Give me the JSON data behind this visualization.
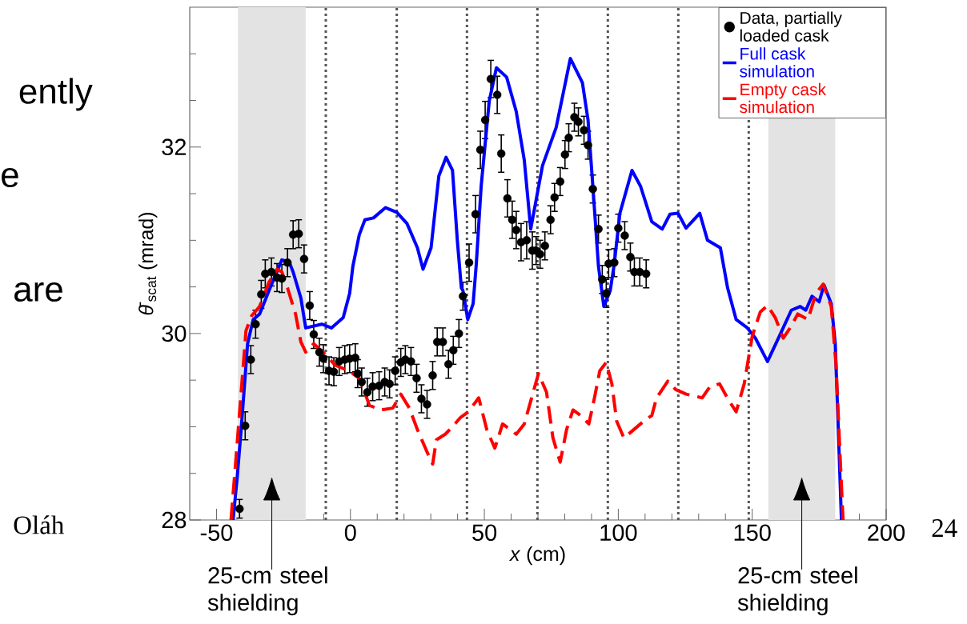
{
  "chart_data": {
    "type": "line",
    "xlabel": "*x* (cm)",
    "ylabel": "*θ̄*$_{scat}$ (mrad)",
    "xlim": [
      -60,
      200
    ],
    "xticks": [
      -50,
      0,
      50,
      100,
      150,
      200,
      {
        "value": -40,
        "label": null
      },
      {
        "value": -30,
        "label": null
      },
      {
        "value": -20,
        "label": null
      },
      {
        "value": -10,
        "label": null
      },
      {
        "value": 10,
        "label": null
      },
      {
        "value": 20,
        "label": null
      },
      {
        "value": 30,
        "label": null
      },
      {
        "value": 40,
        "label": null
      },
      {
        "value": 60,
        "label": null
      },
      {
        "value": 70,
        "label": null
      },
      {
        "value": 80,
        "label": null
      },
      {
        "value": 90,
        "label": null
      },
      {
        "value": 110,
        "label": null
      },
      {
        "value": 120,
        "label": null
      },
      {
        "value": 130,
        "label": null
      },
      {
        "value": 140,
        "label": null
      },
      {
        "value": 160,
        "label": null
      },
      {
        "value": 170,
        "label": null
      },
      {
        "value": 180,
        "label": null
      },
      {
        "value": 190,
        "label": null
      }
    ],
    "ylim": [
      28,
      33.5
    ],
    "yticks": [
      28,
      30,
      32,
      {
        "value": 28.5,
        "label": null
      },
      {
        "value": 29,
        "label": null
      },
      {
        "value": 29.5,
        "label": null
      },
      {
        "value": 30.5,
        "label": null
      },
      {
        "value": 31,
        "label": null
      },
      {
        "value": 31.5,
        "label": null
      },
      {
        "value": 32.5,
        "label": null
      },
      {
        "value": 33,
        "label": null
      }
    ],
    "legend": "top right",
    "series": [
      {
        "name": "Data, partially loaded cask",
        "type": "scatter",
        "color": "#000000",
        "marker": "circle",
        "x": [
          -41.4,
          -39.3,
          -37.2,
          -35.4,
          -33.3,
          -31.8,
          -29.5,
          -27.4,
          -25.6,
          -23.5,
          -21.4,
          -19.3,
          -17.3,
          -15.2,
          -13.7,
          -11.6,
          -10.1,
          -8,
          -6.2,
          -4.2,
          -2.1,
          -0.3,
          1.8,
          2.7,
          4.2,
          6.3,
          8.3,
          10.7,
          12.8,
          14.6,
          16.7,
          18.8,
          20.5,
          22.6,
          24.7,
          26.5,
          28.6,
          30.7,
          32.4,
          34.5,
          36.6,
          38.4,
          40.5,
          42,
          44.3,
          46.7,
          48.5,
          50.3,
          52.4,
          54.8,
          56.3,
          58.6,
          60.4,
          61.9,
          63.7,
          65.8,
          67.9,
          69.3,
          70.8,
          72.6,
          74.7,
          76.2,
          78.3,
          80.1,
          81.5,
          83.6,
          85.1,
          87.2,
          88.7,
          90.5,
          92.6,
          94,
          95.5,
          96.4,
          98.5,
          100,
          102.4,
          104.5,
          106,
          108,
          110.4
        ],
        "values": [
          28.12,
          29.01,
          29.72,
          30.1,
          30.42,
          30.64,
          30.66,
          30.6,
          30.59,
          30.76,
          31.06,
          31.07,
          30.8,
          30.3,
          29.99,
          29.8,
          29.73,
          29.6,
          29.59,
          29.7,
          29.72,
          29.73,
          29.74,
          29.57,
          29.48,
          29.37,
          29.43,
          29.44,
          29.48,
          29.46,
          29.6,
          29.69,
          29.72,
          29.7,
          29.52,
          29.3,
          29.24,
          29.55,
          29.91,
          29.91,
          29.67,
          29.82,
          30.0,
          30.4,
          30.76,
          31.28,
          31.97,
          32.29,
          32.73,
          32.56,
          31.93,
          31.45,
          31.22,
          31.11,
          30.98,
          31.0,
          30.89,
          30.89,
          30.85,
          30.94,
          31.22,
          31.46,
          31.63,
          31.92,
          32.1,
          32.32,
          32.27,
          32.18,
          32.02,
          31.55,
          31.12,
          30.58,
          30.43,
          30.75,
          30.76,
          31.13,
          31.05,
          30.82,
          30.66,
          30.66,
          30.64
        ],
        "errors": [
          0.1,
          0.15,
          0.15,
          0.15,
          0.15,
          0.15,
          0.15,
          0.15,
          0.15,
          0.15,
          0.15,
          0.15,
          0.15,
          0.15,
          0.15,
          0.15,
          0.15,
          0.15,
          0.15,
          0.15,
          0.15,
          0.15,
          0.15,
          0.15,
          0.15,
          0.15,
          0.15,
          0.15,
          0.15,
          0.15,
          0.15,
          0.15,
          0.15,
          0.15,
          0.15,
          0.15,
          0.15,
          0.15,
          0.15,
          0.15,
          0.15,
          0.15,
          0.15,
          0.15,
          0.2,
          0.2,
          0.2,
          0.2,
          0.2,
          0.2,
          0.2,
          0.2,
          0.2,
          0.2,
          0.2,
          0.2,
          0.2,
          0.15,
          0.15,
          0.15,
          0.15,
          0.15,
          0.15,
          0.15,
          0.15,
          0.15,
          0.15,
          0.15,
          0.15,
          0.15,
          0.15,
          0.15,
          0.15,
          0.15,
          0.15,
          0.15,
          0.15,
          0.15,
          0.15,
          0.15,
          0.15
        ]
      },
      {
        "name": "Full cask simulation",
        "color": "#0000ff",
        "line_style": "solid",
        "marker": "none",
        "x": [
          -43.8,
          -42.3,
          -40.8,
          -38.4,
          -36.3,
          -33.9,
          -30.4,
          -25.6,
          -22.9,
          -21.4,
          -18.5,
          -16.7,
          -13.7,
          -10.7,
          -7.1,
          -2.7,
          -0.3,
          0.9,
          3.3,
          5.4,
          8.6,
          13.1,
          17.3,
          21.1,
          25,
          27.1,
          30.1,
          33,
          35.7,
          38.1,
          39.9,
          41.4,
          42,
          43.8,
          45.8,
          47,
          48.8,
          51.8,
          54.5,
          58.3,
          61.9,
          64.9,
          67.3,
          71.7,
          76.8,
          82.1,
          86.6,
          88.7,
          90.5,
          92.6,
          94.6,
          97,
          98.5,
          100.6,
          105.1,
          108.3,
          112.5,
          116.4,
          119.3,
          122.3,
          125.3,
          130.4,
          133.3,
          138.1,
          140.8,
          144,
          148.2,
          151.2,
          155.7,
          160.1,
          164.6,
          167.9,
          170,
          172.3,
          175,
          176.8,
          179.5,
          181,
          182.4,
          183.3
        ],
        "values": [
          28.0,
          28.45,
          28.97,
          29.89,
          30.15,
          30.21,
          30.46,
          30.79,
          30.77,
          30.66,
          30.38,
          30.06,
          30.08,
          30.1,
          30.06,
          30.17,
          30.43,
          30.72,
          31.06,
          31.22,
          31.24,
          31.35,
          31.3,
          31.18,
          30.92,
          30.69,
          30.92,
          31.69,
          31.89,
          31.75,
          31.0,
          30.49,
          30.46,
          30.15,
          30.32,
          30.75,
          31.58,
          32.49,
          32.85,
          32.75,
          32.38,
          31.86,
          31.12,
          31.8,
          32.21,
          32.95,
          32.69,
          32.29,
          31.58,
          30.72,
          30.29,
          30.46,
          30.75,
          31.29,
          31.75,
          31.58,
          31.2,
          31.12,
          31.28,
          31.29,
          31.13,
          31.29,
          31.0,
          30.92,
          30.49,
          30.15,
          30.06,
          29.95,
          29.7,
          29.97,
          30.25,
          30.29,
          30.25,
          30.4,
          30.34,
          30.52,
          30.32,
          29.89,
          28.75,
          28.0
        ]
      },
      {
        "name": "Empty cask simulation",
        "color": "#ff0000",
        "line_style": "dashed",
        "marker": "none",
        "x": [
          -44.6,
          -42.9,
          -40.8,
          -39,
          -36.9,
          -33.9,
          -30.4,
          -27.4,
          -25.6,
          -23.5,
          -20.5,
          -18.5,
          -16.7,
          -13.7,
          -9.5,
          -5.7,
          -0.6,
          3.3,
          7.1,
          11.3,
          15.8,
          18.8,
          22,
          25,
          29.2,
          30.7,
          32.1,
          35.4,
          38.1,
          41.1,
          44,
          47.9,
          50.9,
          53.9,
          56.8,
          61.9,
          64.9,
          70.2,
          73.2,
          75.6,
          78.3,
          80.7,
          83.1,
          86,
          89,
          91.1,
          93.1,
          95.5,
          97.6,
          99.4,
          102.1,
          105.4,
          109.5,
          112.5,
          114.3,
          118.5,
          121.4,
          125.3,
          131.3,
          134.2,
          137.8,
          141.1,
          144,
          147,
          150,
          153,
          155.7,
          158.6,
          161.6,
          164.6,
          167,
          170.8,
          173.8,
          176.5,
          179.5,
          181.3,
          182.7,
          183.9
        ],
        "values": [
          28.0,
          28.6,
          29.37,
          30.03,
          30.19,
          30.29,
          30.55,
          30.69,
          30.66,
          30.49,
          30.21,
          29.91,
          29.8,
          29.89,
          29.78,
          29.66,
          29.6,
          29.52,
          29.23,
          29.18,
          29.2,
          29.35,
          29.2,
          28.97,
          28.69,
          28.6,
          28.86,
          28.92,
          29.0,
          29.1,
          29.16,
          29.31,
          28.97,
          28.77,
          29.03,
          28.92,
          29.03,
          29.57,
          29.37,
          28.88,
          28.62,
          28.97,
          29.18,
          29.12,
          29.03,
          29.31,
          29.6,
          29.69,
          29.46,
          29.06,
          28.88,
          28.96,
          29.06,
          29.12,
          29.31,
          29.49,
          29.4,
          29.35,
          29.31,
          29.43,
          29.46,
          29.29,
          29.16,
          29.46,
          29.97,
          30.23,
          30.3,
          30.17,
          29.95,
          30.08,
          30.21,
          30.15,
          30.43,
          30.53,
          30.29,
          29.66,
          28.75,
          28.0
        ]
      }
    ],
    "ref_lines": [
      {
        "axis": "x",
        "value": -9.2,
        "color": "#555555",
        "line_style": "dotted"
      },
      {
        "axis": "x",
        "value": 17.3,
        "color": "#555555",
        "line_style": "dotted"
      },
      {
        "axis": "x",
        "value": 43.5,
        "color": "#555555",
        "line_style": "dotted"
      },
      {
        "axis": "x",
        "value": 69.8,
        "color": "#555555",
        "line_style": "dotted"
      },
      {
        "axis": "x",
        "value": 96.1,
        "color": "#555555",
        "line_style": "dotted"
      },
      {
        "axis": "x",
        "value": 122.4,
        "color": "#555555",
        "line_style": "dotted"
      },
      {
        "axis": "x",
        "value": 148.7,
        "color": "#555555",
        "line_style": "dotted"
      }
    ],
    "bands": [
      {
        "axis": "x",
        "from": -42,
        "to": -16.7,
        "label": "25-cm steel shielding",
        "color": "#e3e3e3"
      },
      {
        "axis": "x",
        "from": 156,
        "to": 181,
        "label": "25-cm steel shielding",
        "color": "#e3e3e3"
      }
    ],
    "annotations": [
      "ently",
      "e",
      "are",
      "Oláh",
      "24"
    ]
  }
}
